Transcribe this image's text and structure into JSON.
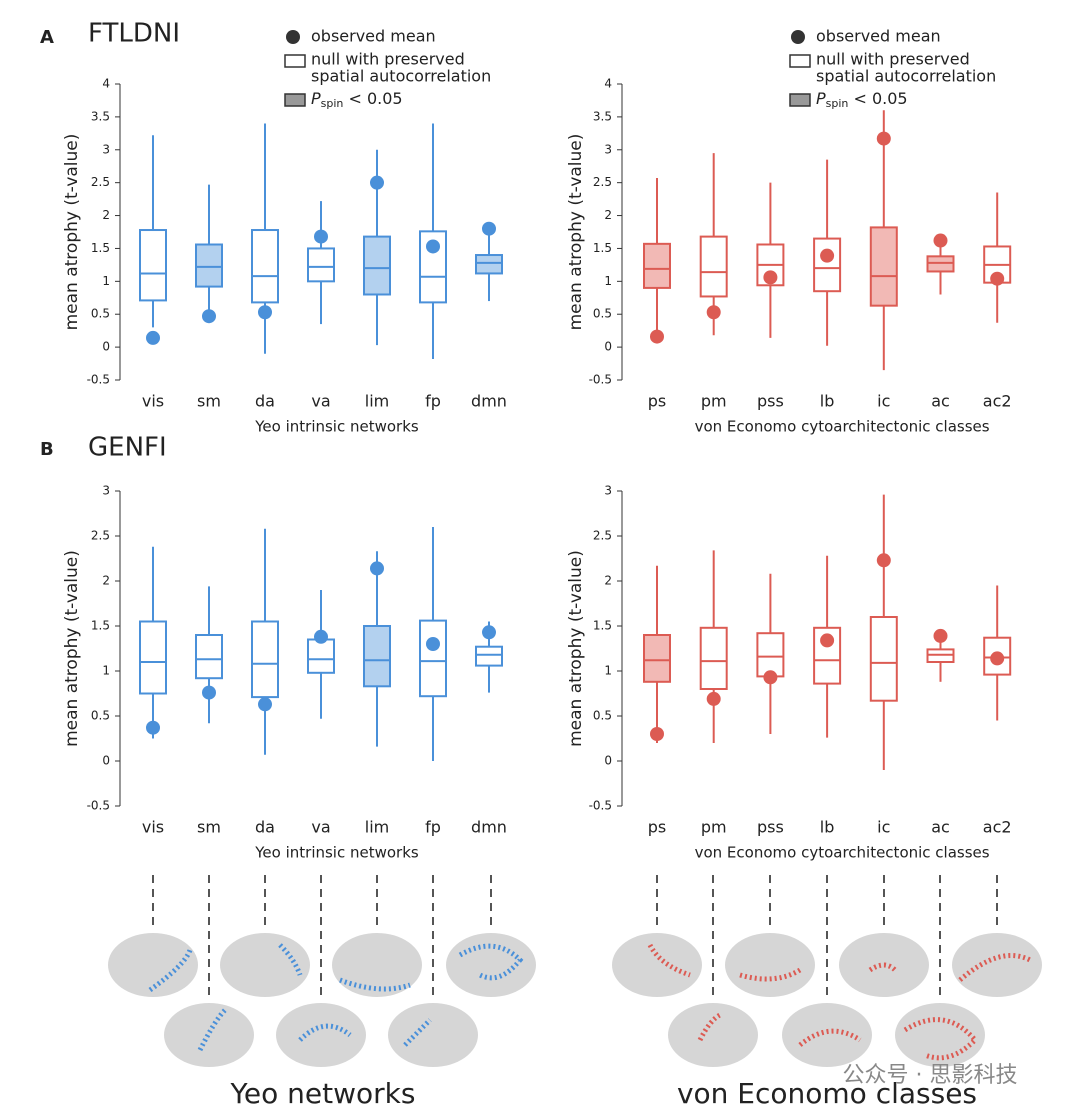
{
  "panels": [
    {
      "letter": "A",
      "title": "FTLDNI"
    },
    {
      "letter": "B",
      "title": "GENFI"
    }
  ],
  "legend": {
    "mean": "observed mean",
    "null": [
      "null with preserved",
      "spatial autocorrelation"
    ],
    "sig": {
      "p": "P",
      "sub": "spin",
      "rest": " < 0.05"
    }
  },
  "bottom_labels": [
    "Yeo networks",
    "von Economo classes"
  ],
  "watermark": "公众号 · 思影科技",
  "chart_data": [
    {
      "type": "box",
      "x_label": "Yeo intrinsic networks",
      "y_label": "mean atrophy (t-value)",
      "color": "#4a90d9",
      "fill": "#b3d1ef",
      "ylim": [
        -0.5,
        4
      ],
      "yticks": [
        -0.5,
        0,
        0.5,
        1,
        1.5,
        2,
        2.5,
        3,
        3.5,
        4
      ],
      "categories": [
        "vis",
        "sm",
        "da",
        "va",
        "lim",
        "fp",
        "dmn"
      ],
      "lows": [
        0.3,
        0.55,
        -0.1,
        0.35,
        0.03,
        -0.18,
        0.7
      ],
      "q1": [
        0.71,
        0.92,
        0.68,
        1.0,
        0.8,
        0.68,
        1.12
      ],
      "medians": [
        1.12,
        1.22,
        1.08,
        1.22,
        1.2,
        1.07,
        1.28
      ],
      "q3": [
        1.78,
        1.56,
        1.78,
        1.5,
        1.68,
        1.76,
        1.4
      ],
      "highs": [
        3.22,
        2.47,
        3.4,
        2.22,
        3.0,
        3.4,
        1.8
      ],
      "means": [
        0.14,
        0.47,
        0.53,
        1.68,
        2.5,
        1.53,
        1.8
      ],
      "significant": [
        false,
        true,
        false,
        false,
        true,
        false,
        true
      ]
    },
    {
      "type": "box",
      "x_label": "von Economo cytoarchitectonic classes",
      "y_label": "mean atrophy (t-value)",
      "color": "#dc5b53",
      "fill": "#f2b9b5",
      "ylim": [
        -0.5,
        4
      ],
      "yticks": [
        -0.5,
        0,
        0.5,
        1,
        1.5,
        2,
        2.5,
        3,
        3.5,
        4
      ],
      "categories": [
        "ps",
        "pm",
        "pss",
        "lb",
        "ic",
        "ac",
        "ac2"
      ],
      "lows": [
        0.2,
        0.18,
        0.14,
        0.02,
        -0.35,
        0.8,
        0.37
      ],
      "q1": [
        0.9,
        0.77,
        0.94,
        0.85,
        0.63,
        1.15,
        0.98
      ],
      "medians": [
        1.19,
        1.14,
        1.25,
        1.2,
        1.08,
        1.28,
        1.25
      ],
      "q3": [
        1.57,
        1.68,
        1.56,
        1.65,
        1.82,
        1.38,
        1.53
      ],
      "highs": [
        2.57,
        2.95,
        2.5,
        2.85,
        3.6,
        1.62,
        2.35
      ],
      "means": [
        0.16,
        0.53,
        1.06,
        1.39,
        3.17,
        1.62,
        1.04
      ],
      "significant": [
        true,
        false,
        false,
        false,
        true,
        true,
        false
      ]
    },
    {
      "type": "box",
      "x_label": "Yeo intrinsic networks",
      "y_label": "mean atrophy (t-value)",
      "color": "#4a90d9",
      "fill": "#b3d1ef",
      "ylim": [
        -0.5,
        3
      ],
      "yticks": [
        -0.5,
        0,
        0.5,
        1,
        1.5,
        2,
        2.5,
        3
      ],
      "categories": [
        "vis",
        "sm",
        "da",
        "va",
        "lim",
        "fp",
        "dmn"
      ],
      "lows": [
        0.25,
        0.42,
        0.07,
        0.47,
        0.16,
        0.0,
        0.76
      ],
      "q1": [
        0.75,
        0.92,
        0.71,
        0.98,
        0.83,
        0.72,
        1.06
      ],
      "medians": [
        1.1,
        1.13,
        1.08,
        1.13,
        1.12,
        1.11,
        1.18
      ],
      "q3": [
        1.55,
        1.4,
        1.55,
        1.35,
        1.5,
        1.56,
        1.27
      ],
      "highs": [
        2.38,
        1.94,
        2.58,
        1.9,
        2.33,
        2.6,
        1.55
      ],
      "means": [
        0.37,
        0.76,
        0.63,
        1.38,
        2.14,
        1.3,
        1.43
      ],
      "significant": [
        false,
        false,
        false,
        false,
        true,
        false,
        false
      ]
    },
    {
      "type": "box",
      "x_label": "von Economo cytoarchitectonic classes",
      "y_label": "mean atrophy (t-value)",
      "color": "#dc5b53",
      "fill": "#f2b9b5",
      "ylim": [
        -0.5,
        3
      ],
      "yticks": [
        -0.5,
        0,
        0.5,
        1,
        1.5,
        2,
        2.5,
        3
      ],
      "categories": [
        "ps",
        "pm",
        "pss",
        "lb",
        "ic",
        "ac",
        "ac2"
      ],
      "lows": [
        0.2,
        0.2,
        0.3,
        0.26,
        -0.1,
        0.88,
        0.45
      ],
      "q1": [
        0.88,
        0.8,
        0.94,
        0.86,
        0.67,
        1.1,
        0.96
      ],
      "medians": [
        1.12,
        1.11,
        1.16,
        1.12,
        1.09,
        1.18,
        1.15
      ],
      "q3": [
        1.4,
        1.48,
        1.42,
        1.48,
        1.6,
        1.24,
        1.37
      ],
      "highs": [
        2.17,
        2.34,
        2.08,
        2.28,
        2.96,
        1.38,
        1.95
      ],
      "means": [
        0.3,
        0.69,
        0.93,
        1.34,
        2.23,
        1.39,
        1.14
      ],
      "significant": [
        true,
        false,
        false,
        false,
        false,
        false,
        false
      ]
    }
  ]
}
